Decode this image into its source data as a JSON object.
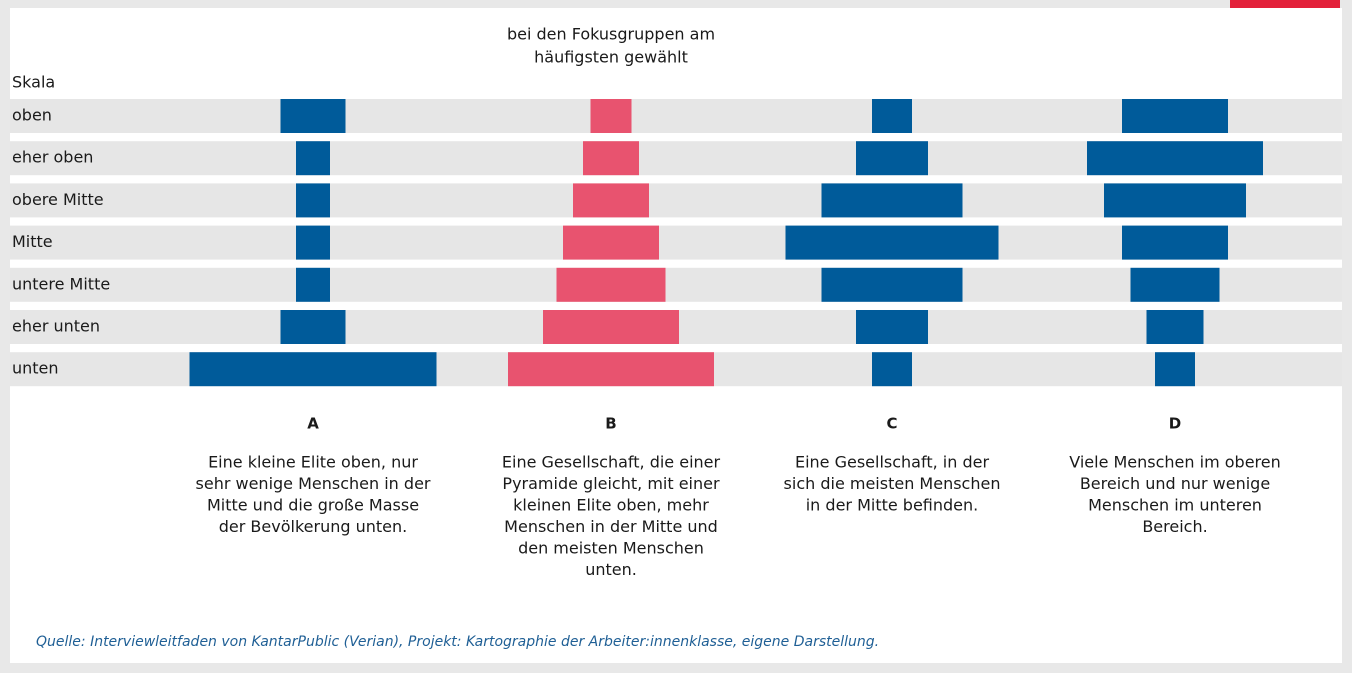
{
  "header_note": [
    "bei den Fokusgruppen am",
    "häufigsten gewählt"
  ],
  "scale_label": "Skala",
  "rows": [
    "oben",
    "eher oben",
    "obere Mitte",
    "Mitte",
    "untere Mitte",
    "eher unten",
    "unten"
  ],
  "panels": [
    {
      "letter": "A",
      "description": [
        "Eine kleine Elite oben, nur",
        "sehr wenige Menschen in der",
        "Mitte und die große Masse",
        "der Bevölkerung unten."
      ]
    },
    {
      "letter": "B",
      "description": [
        "Eine Gesellschaft, die einer",
        "Pyramide gleicht, mit einer",
        "kleinen Elite oben, mehr",
        "Menschen in der Mitte und",
        "den meisten Menschen",
        "unten."
      ]
    },
    {
      "letter": "C",
      "description": [
        "Eine Gesellschaft, in der",
        "sich die meisten Menschen",
        "in der Mitte befinden."
      ]
    },
    {
      "letter": "D",
      "description": [
        "Viele Menschen im oberen",
        "Bereich und nur wenige",
        "Menschen im unteren",
        "Bereich."
      ]
    }
  ],
  "source": "Quelle: Interviewleitfaden von KantarPublic (Verian), Projekt: Kartographie der Arbeiter:innenklasse, eigene Darstellung."
}
